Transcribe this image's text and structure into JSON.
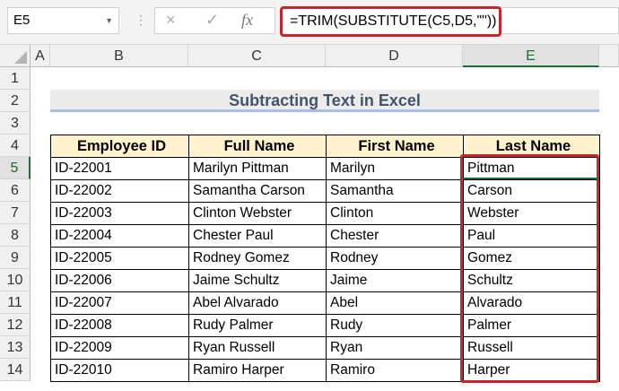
{
  "name_box": "E5",
  "formula_bar": {
    "cancel_icon": "×",
    "enter_icon": "✓",
    "fx_label": "fx",
    "formula": "=TRIM(SUBSTITUTE(C5,D5,\"\"))"
  },
  "columns": [
    "A",
    "B",
    "C",
    "D",
    "E"
  ],
  "rows": [
    "1",
    "2",
    "3",
    "4",
    "5",
    "6",
    "7",
    "8",
    "9",
    "10",
    "11",
    "12",
    "13",
    "14"
  ],
  "title": "Subtracting Text in Excel",
  "table": {
    "headers": [
      "Employee ID",
      "Full Name",
      "First Name",
      "Last Name"
    ],
    "rows": [
      [
        "ID-22001",
        "Marilyn Pittman",
        "Marilyn",
        "Pittman"
      ],
      [
        "ID-22002",
        "Samantha Carson",
        "Samantha",
        "Carson"
      ],
      [
        "ID-22003",
        "Clinton Webster",
        "Clinton",
        "Webster"
      ],
      [
        "ID-22004",
        "Chester Paul",
        "Chester",
        "Paul"
      ],
      [
        "ID-22005",
        "Rodney Gomez",
        "Rodney",
        "Gomez"
      ],
      [
        "ID-22006",
        "Jaime Schultz",
        "Jaime",
        "Schultz"
      ],
      [
        "ID-22007",
        "Abel Alvarado",
        "Abel",
        "Alvarado"
      ],
      [
        "ID-22008",
        "Rudy Palmer",
        "Rudy",
        "Palmer"
      ],
      [
        "ID-22009",
        "Ryan Russell",
        "Ryan",
        "Russell"
      ],
      [
        "ID-22010",
        "Ramiro Harper",
        "Ramiro",
        "Harper"
      ]
    ]
  },
  "colors": {
    "highlight": "#c5262c",
    "header_fill": "#fff2cc",
    "selection": "#1d6b38"
  }
}
